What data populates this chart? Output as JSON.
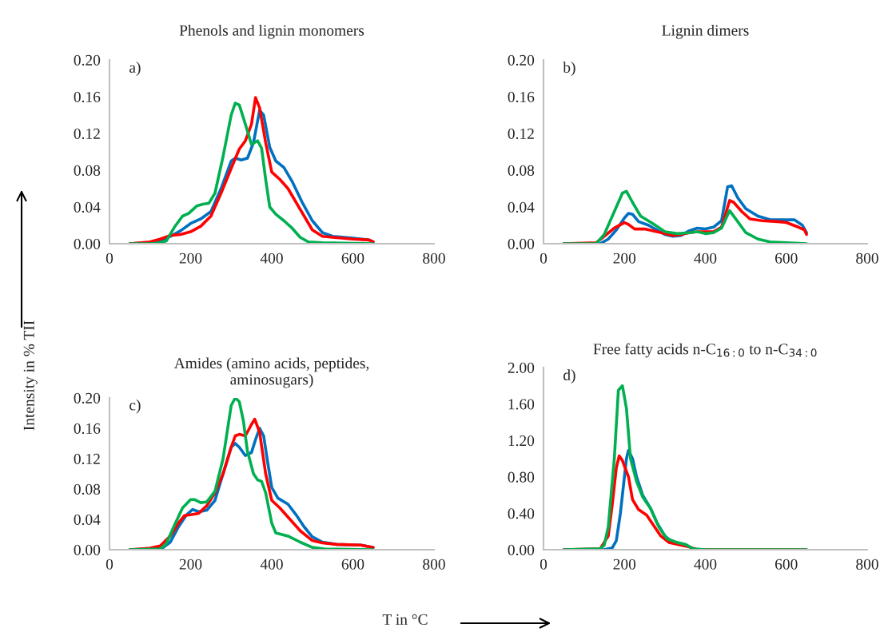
{
  "chart_data": [
    {
      "type": "line",
      "title": "Phenols and lignin monomers",
      "annotations": [
        "a)",
        "Intensity in % TII",
        "T in °C"
      ],
      "xlim": [
        0,
        800
      ],
      "xticks": [
        0,
        200,
        400,
        600,
        800
      ],
      "ylim": [
        0,
        0.2
      ],
      "yticks": [
        {
          "value": 0,
          "label": "0.00"
        },
        {
          "value": 0.04,
          "label": "0.04"
        },
        {
          "value": 0.08,
          "label": "0.08"
        },
        {
          "value": 0.12,
          "label": "0.12"
        },
        {
          "value": 0.16,
          "label": "0.16"
        },
        {
          "value": 0.2,
          "label": "0.20"
        }
      ],
      "grid": false,
      "legend": false,
      "series": [
        {
          "color": "#0070c0",
          "x": [
            50,
            100,
            125,
            150,
            175,
            200,
            225,
            250,
            275,
            300,
            310,
            325,
            340,
            355,
            370,
            380,
            395,
            410,
            430,
            450,
            475,
            500,
            525,
            550,
            600,
            640,
            650
          ],
          "values": [
            0,
            0.001,
            0.003,
            0.008,
            0.014,
            0.022,
            0.027,
            0.035,
            0.06,
            0.09,
            0.093,
            0.091,
            0.093,
            0.11,
            0.145,
            0.14,
            0.105,
            0.09,
            0.083,
            0.068,
            0.045,
            0.025,
            0.012,
            0.008,
            0.006,
            0.004,
            0.002
          ]
        },
        {
          "color": "#ff0000",
          "x": [
            50,
            100,
            125,
            150,
            175,
            200,
            225,
            250,
            275,
            300,
            320,
            335,
            350,
            360,
            370,
            385,
            400,
            420,
            440,
            460,
            480,
            500,
            525,
            550,
            600,
            640,
            650
          ],
          "values": [
            0,
            0.002,
            0.005,
            0.009,
            0.01,
            0.013,
            0.019,
            0.03,
            0.055,
            0.082,
            0.103,
            0.112,
            0.13,
            0.159,
            0.148,
            0.11,
            0.078,
            0.07,
            0.06,
            0.045,
            0.03,
            0.015,
            0.008,
            0.007,
            0.005,
            0.004,
            0.002
          ]
        },
        {
          "color": "#00b050",
          "x": [
            50,
            100,
            125,
            140,
            160,
            180,
            195,
            215,
            230,
            245,
            260,
            280,
            300,
            310,
            320,
            335,
            350,
            365,
            375,
            385,
            395,
            410,
            430,
            450,
            470,
            490,
            525,
            650
          ],
          "values": [
            0,
            0,
            0.001,
            0.003,
            0.018,
            0.03,
            0.033,
            0.041,
            0.043,
            0.044,
            0.055,
            0.095,
            0.14,
            0.153,
            0.151,
            0.13,
            0.108,
            0.112,
            0.104,
            0.07,
            0.04,
            0.032,
            0.025,
            0.017,
            0.007,
            0.002,
            0.001,
            0
          ]
        }
      ]
    },
    {
      "type": "line",
      "title": "Lignin dimers",
      "annotations": [
        "b)"
      ],
      "xlim": [
        0,
        800
      ],
      "xticks": [
        0,
        200,
        400,
        600,
        800
      ],
      "ylim": [
        0,
        0.2
      ],
      "yticks": [
        {
          "value": 0,
          "label": "0.00"
        },
        {
          "value": 0.04,
          "label": "0.04"
        },
        {
          "value": 0.08,
          "label": "0.08"
        },
        {
          "value": 0.12,
          "label": "0.12"
        },
        {
          "value": 0.16,
          "label": "0.16"
        },
        {
          "value": 0.2,
          "label": "0.20"
        }
      ],
      "grid": false,
      "legend": false,
      "series": [
        {
          "color": "#0070c0",
          "x": [
            50,
            140,
            160,
            180,
            200,
            210,
            220,
            235,
            260,
            300,
            320,
            340,
            360,
            380,
            400,
            420,
            440,
            455,
            465,
            480,
            500,
            530,
            560,
            600,
            620,
            640,
            650
          ],
          "values": [
            0,
            0,
            0.005,
            0.015,
            0.028,
            0.033,
            0.032,
            0.024,
            0.02,
            0.01,
            0.008,
            0.009,
            0.014,
            0.017,
            0.016,
            0.018,
            0.025,
            0.062,
            0.063,
            0.05,
            0.038,
            0.03,
            0.026,
            0.026,
            0.026,
            0.02,
            0.012
          ]
        },
        {
          "color": "#ff0000",
          "x": [
            50,
            130,
            150,
            175,
            200,
            210,
            225,
            250,
            280,
            300,
            320,
            340,
            360,
            380,
            420,
            440,
            460,
            470,
            490,
            510,
            540,
            580,
            600,
            630,
            645,
            650
          ],
          "values": [
            0,
            0.001,
            0.008,
            0.017,
            0.023,
            0.021,
            0.016,
            0.016,
            0.013,
            0.011,
            0.009,
            0.01,
            0.012,
            0.013,
            0.013,
            0.018,
            0.047,
            0.045,
            0.035,
            0.027,
            0.025,
            0.024,
            0.023,
            0.018,
            0.015,
            0.01
          ]
        },
        {
          "color": "#00b050",
          "x": [
            50,
            130,
            150,
            175,
            195,
            205,
            220,
            240,
            270,
            300,
            330,
            360,
            380,
            400,
            420,
            440,
            460,
            480,
            500,
            530,
            560,
            600,
            650
          ],
          "values": [
            0,
            0,
            0.01,
            0.035,
            0.055,
            0.057,
            0.045,
            0.03,
            0.022,
            0.013,
            0.011,
            0.012,
            0.013,
            0.011,
            0.012,
            0.017,
            0.036,
            0.024,
            0.012,
            0.005,
            0.002,
            0.001,
            0
          ]
        }
      ]
    },
    {
      "type": "line",
      "title": "Amides (amino acids, peptides,\naminosugars)",
      "annotations": [
        "c)"
      ],
      "xlim": [
        0,
        800
      ],
      "xticks": [
        0,
        200,
        400,
        600,
        800
      ],
      "ylim": [
        0,
        0.2
      ],
      "yticks": [
        {
          "value": 0,
          "label": "0.00"
        },
        {
          "value": 0.04,
          "label": "0.04"
        },
        {
          "value": 0.08,
          "label": "0.08"
        },
        {
          "value": 0.12,
          "label": "0.12"
        },
        {
          "value": 0.16,
          "label": "0.16"
        },
        {
          "value": 0.2,
          "label": "0.20"
        }
      ],
      "grid": false,
      "legend": false,
      "series": [
        {
          "color": "#0070c0",
          "x": [
            50,
            100,
            130,
            150,
            170,
            190,
            205,
            220,
            240,
            260,
            280,
            300,
            310,
            320,
            335,
            350,
            360,
            370,
            380,
            390,
            400,
            415,
            440,
            460,
            480,
            500,
            525,
            560,
            620,
            650
          ],
          "values": [
            0,
            0.001,
            0.002,
            0.01,
            0.03,
            0.046,
            0.053,
            0.05,
            0.052,
            0.065,
            0.1,
            0.135,
            0.14,
            0.135,
            0.124,
            0.128,
            0.145,
            0.16,
            0.15,
            0.115,
            0.082,
            0.068,
            0.06,
            0.046,
            0.03,
            0.017,
            0.01,
            0.007,
            0.006,
            0.003
          ]
        },
        {
          "color": "#ff0000",
          "x": [
            50,
            100,
            125,
            150,
            170,
            185,
            200,
            220,
            240,
            260,
            280,
            300,
            310,
            320,
            335,
            350,
            358,
            370,
            385,
            400,
            420,
            445,
            470,
            500,
            525,
            560,
            620,
            650
          ],
          "values": [
            0,
            0.002,
            0.005,
            0.018,
            0.035,
            0.045,
            0.046,
            0.048,
            0.058,
            0.075,
            0.1,
            0.135,
            0.15,
            0.152,
            0.15,
            0.165,
            0.172,
            0.155,
            0.1,
            0.065,
            0.055,
            0.04,
            0.025,
            0.012,
            0.009,
            0.007,
            0.006,
            0.003
          ]
        },
        {
          "color": "#00b050",
          "x": [
            50,
            125,
            140,
            160,
            180,
            200,
            210,
            225,
            240,
            260,
            280,
            300,
            310,
            320,
            330,
            340,
            355,
            365,
            375,
            385,
            400,
            410,
            440,
            470,
            500,
            530,
            650
          ],
          "values": [
            0,
            0.001,
            0.008,
            0.032,
            0.055,
            0.066,
            0.066,
            0.062,
            0.063,
            0.077,
            0.12,
            0.19,
            0.2,
            0.195,
            0.17,
            0.13,
            0.1,
            0.092,
            0.09,
            0.075,
            0.035,
            0.022,
            0.018,
            0.01,
            0.003,
            0.001,
            0
          ]
        }
      ]
    },
    {
      "type": "line",
      "title": "Free fatty acids n-C$_{16:0}$ to n-C$_{34:0}$",
      "annotations": [
        "d)"
      ],
      "xlim": [
        0,
        800
      ],
      "xticks": [
        0,
        200,
        400,
        600,
        800
      ],
      "ylim": [
        0,
        2
      ],
      "yticks": [
        {
          "value": 0,
          "label": "0.00"
        },
        {
          "value": 0.4,
          "label": "0.40"
        },
        {
          "value": 0.8,
          "label": "0.80"
        },
        {
          "value": 1.2,
          "label": "1.20"
        },
        {
          "value": 1.6,
          "label": "1.60"
        },
        {
          "value": 2,
          "label": "2.00"
        }
      ],
      "grid": false,
      "legend": false,
      "series": [
        {
          "color": "#0070c0",
          "x": [
            50,
            150,
            170,
            180,
            190,
            200,
            205,
            210,
            220,
            230,
            245,
            265,
            280,
            300,
            320,
            340
          ],
          "values": [
            0,
            0,
            0.02,
            0.1,
            0.4,
            0.8,
            1.0,
            1.09,
            1.0,
            0.8,
            0.6,
            0.45,
            0.3,
            0.15,
            0.08,
            0.06
          ]
        },
        {
          "color": "#ff0000",
          "x": [
            50,
            140,
            160,
            170,
            180,
            187,
            195,
            210,
            220,
            235,
            255,
            270,
            290,
            310,
            340,
            360,
            380,
            650
          ],
          "values": [
            0,
            0.01,
            0.15,
            0.5,
            0.9,
            1.03,
            0.98,
            0.8,
            0.55,
            0.44,
            0.38,
            0.28,
            0.15,
            0.08,
            0.05,
            0.03,
            0,
            0
          ]
        },
        {
          "color": "#00b050",
          "x": [
            50,
            140,
            150,
            160,
            175,
            185,
            195,
            205,
            215,
            230,
            245,
            265,
            285,
            305,
            330,
            350,
            370,
            400,
            650
          ],
          "values": [
            0,
            0.01,
            0.05,
            0.25,
            1.0,
            1.75,
            1.8,
            1.55,
            1.0,
            0.75,
            0.58,
            0.45,
            0.25,
            0.12,
            0.08,
            0.06,
            0.01,
            0,
            0
          ]
        }
      ]
    }
  ]
}
